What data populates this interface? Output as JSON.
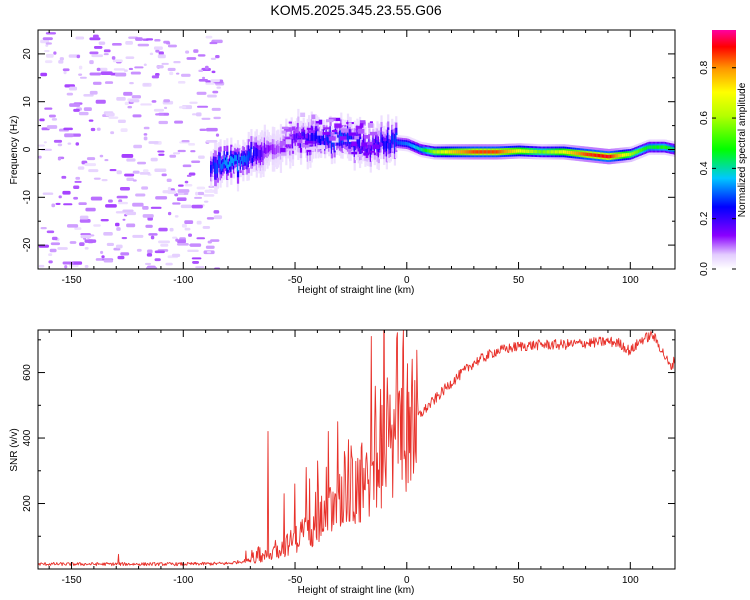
{
  "figure_title": "KOM5.2025.345.23.55.G06",
  "chart_data": [
    {
      "type": "heatmap",
      "title": "KOM5.2025.345.23.55.G06",
      "xlabel": "Height of straight line (km)",
      "ylabel": "Frequency (Hz)",
      "xlim": [
        -165,
        120
      ],
      "ylim": [
        -25,
        25
      ],
      "x_ticks": [
        -150,
        -100,
        -50,
        0,
        50,
        100
      ],
      "x_tick_labels": [
        "-150",
        "-100",
        "-50",
        "0",
        "50",
        "100"
      ],
      "y_ticks": [
        -20,
        -10,
        0,
        10,
        20
      ],
      "y_tick_labels": [
        "-20",
        "-10",
        "0",
        "10",
        "20"
      ],
      "colorbar": {
        "label": "Normalized spectral amplitude",
        "range": [
          0,
          0.95
        ],
        "ticks": [
          0.0,
          0.2,
          0.4,
          0.6,
          0.8
        ],
        "tick_labels": [
          "0.0",
          "0.2",
          "0.4",
          "0.6",
          "0.8"
        ],
        "colormap": "rainbow (violet → blue → cyan → green → yellow → orange → red → magenta)"
      },
      "noise_region_x": [
        -165,
        -85
      ],
      "noise_amplitude": 0.05,
      "signal_track": [
        {
          "x": -88,
          "f": -3.5,
          "a": 0.25
        },
        {
          "x": -80,
          "f": -3.0,
          "a": 0.35
        },
        {
          "x": -72,
          "f": -2.0,
          "a": 0.3
        },
        {
          "x": -64,
          "f": -0.5,
          "a": 0.15
        },
        {
          "x": -57,
          "f": 1.0,
          "a": 0.1
        },
        {
          "x": -50,
          "f": 2.5,
          "a": 0.18
        },
        {
          "x": -44,
          "f": 2.0,
          "a": 0.22
        },
        {
          "x": -38,
          "f": 2.0,
          "a": 0.25
        },
        {
          "x": -30,
          "f": 2.0,
          "a": 0.3
        },
        {
          "x": -24,
          "f": 1.5,
          "a": 0.25
        },
        {
          "x": -18,
          "f": 0.0,
          "a": 0.18
        },
        {
          "x": -12,
          "f": 1.5,
          "a": 0.22
        },
        {
          "x": -6,
          "f": 1.5,
          "a": 0.28
        },
        {
          "x": 0,
          "f": 1.2,
          "a": 0.32
        },
        {
          "x": 6,
          "f": 0.0,
          "a": 0.4
        },
        {
          "x": 12,
          "f": -0.5,
          "a": 0.6
        },
        {
          "x": 20,
          "f": -0.5,
          "a": 0.75
        },
        {
          "x": 30,
          "f": -0.5,
          "a": 0.85
        },
        {
          "x": 40,
          "f": -0.5,
          "a": 0.85
        },
        {
          "x": 50,
          "f": -0.3,
          "a": 0.7
        },
        {
          "x": 60,
          "f": -0.5,
          "a": 0.55
        },
        {
          "x": 70,
          "f": -0.5,
          "a": 0.7
        },
        {
          "x": 80,
          "f": -1.0,
          "a": 0.85
        },
        {
          "x": 90,
          "f": -1.5,
          "a": 0.9
        },
        {
          "x": 100,
          "f": -1.0,
          "a": 0.6
        },
        {
          "x": 108,
          "f": 0.5,
          "a": 0.45
        },
        {
          "x": 115,
          "f": 0.5,
          "a": 0.5
        },
        {
          "x": 120,
          "f": 0.0,
          "a": 0.4
        }
      ]
    },
    {
      "type": "line",
      "title": "",
      "xlabel": "Height of straight line (km)",
      "ylabel": "SNR (v/v)",
      "xlim": [
        -165,
        120
      ],
      "ylim": [
        0,
        730
      ],
      "x_ticks": [
        -150,
        -100,
        -50,
        0,
        50,
        100
      ],
      "x_tick_labels": [
        "-150",
        "-100",
        "-50",
        "0",
        "50",
        "100"
      ],
      "y_ticks": [
        200,
        400,
        600
      ],
      "y_tick_labels": [
        "200",
        "400",
        "600"
      ],
      "color": "#e8312a",
      "envelope": {
        "x": [
          -165,
          -130,
          -100,
          -80,
          -72,
          -65,
          -58,
          -50,
          -40,
          -30,
          -20,
          -10,
          0,
          10,
          20,
          30,
          40,
          50,
          60,
          70,
          80,
          90,
          95,
          100,
          105,
          110,
          114,
          118,
          120
        ],
        "snr": [
          15,
          15,
          15,
          17,
          25,
          35,
          55,
          90,
          140,
          200,
          260,
          350,
          430,
          500,
          570,
          630,
          665,
          680,
          685,
          685,
          690,
          695,
          690,
          665,
          700,
          715,
          670,
          615,
          640
        ]
      },
      "spikes": [
        {
          "x": -129,
          "snr": 45
        },
        {
          "x": -72,
          "snr": 55
        },
        {
          "x": -62,
          "snr": 420
        },
        {
          "x": -55,
          "snr": 230
        },
        {
          "x": -50,
          "snr": 260
        },
        {
          "x": -45,
          "snr": 310
        },
        {
          "x": -40,
          "snr": 330
        },
        {
          "x": -35,
          "snr": 420
        },
        {
          "x": -31,
          "snr": 450
        },
        {
          "x": -26,
          "snr": 395
        },
        {
          "x": -20,
          "snr": 385
        },
        {
          "x": -16,
          "snr": 710
        },
        {
          "x": -11,
          "snr": 500
        },
        {
          "x": -7,
          "snr": 420
        },
        {
          "x": -3,
          "snr": 500
        },
        {
          "x": 1,
          "snr": 540
        }
      ]
    }
  ]
}
